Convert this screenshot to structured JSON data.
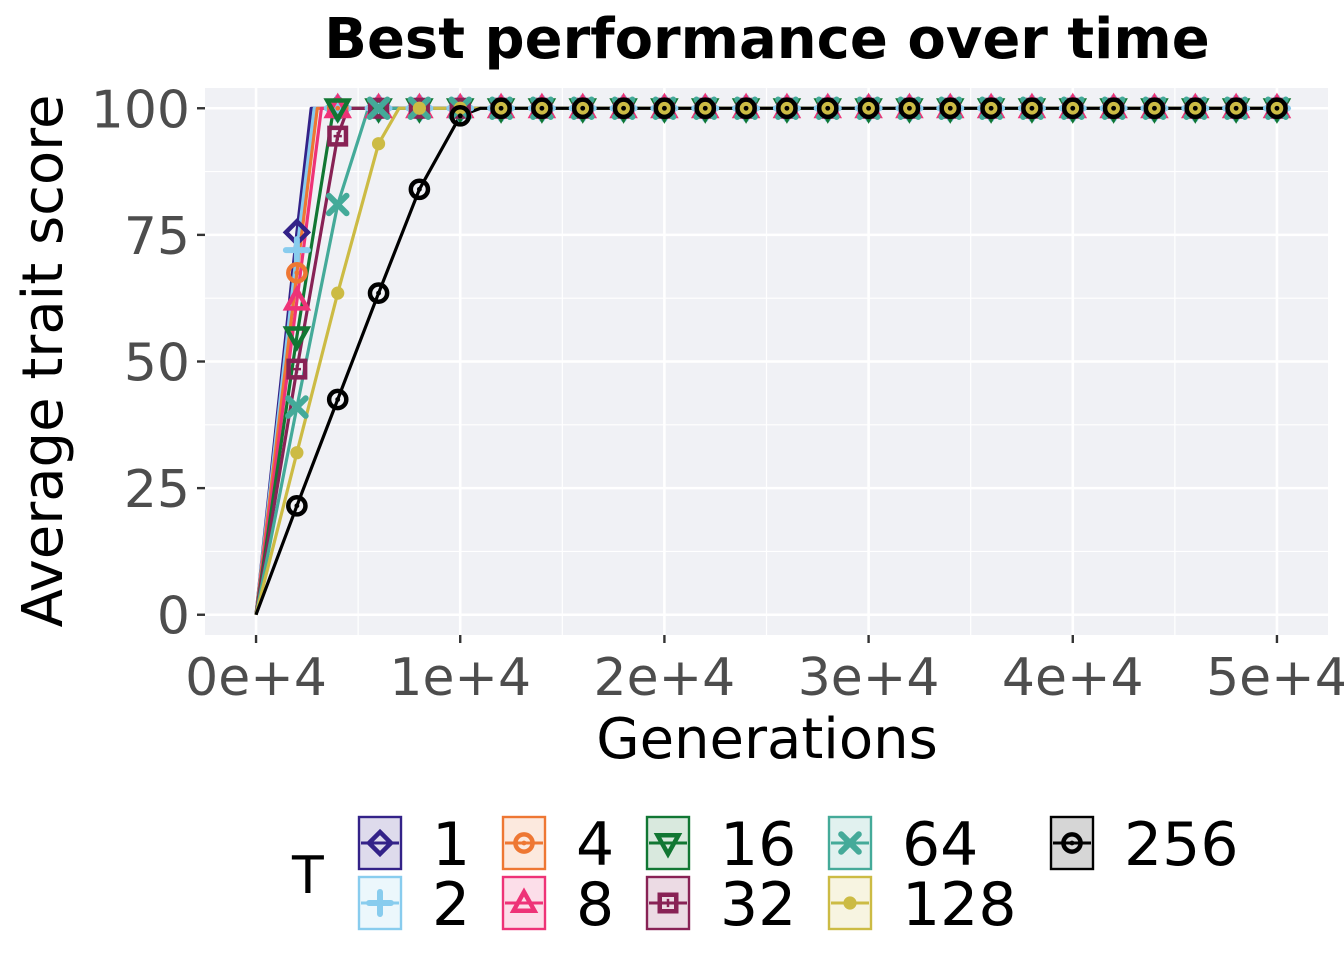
{
  "chart_data": {
    "type": "line",
    "title": "Best performance over time",
    "xlabel": "Generations",
    "ylabel": "Average trait score",
    "xlim": [
      -2500,
      52500
    ],
    "ylim": [
      -4,
      104
    ],
    "xticks": [
      0,
      10000,
      20000,
      30000,
      40000,
      50000
    ],
    "xtick_labels": [
      "0e+4",
      "1e+4",
      "2e+4",
      "3e+4",
      "4e+4",
      "5e+4"
    ],
    "yticks": [
      0,
      25,
      50,
      75,
      100
    ],
    "ytick_labels": [
      "0",
      "25",
      "50",
      "75",
      "100"
    ],
    "grid": true,
    "legend": {
      "title": "T",
      "placement": "bottom"
    },
    "marker_x": [
      2000,
      4000,
      6000,
      8000,
      10000,
      12000,
      14000,
      16000,
      18000,
      20000,
      22000,
      24000,
      26000,
      28000,
      30000,
      32000,
      34000,
      36000,
      38000,
      40000,
      42000,
      44000,
      46000,
      48000,
      50000
    ],
    "series": [
      {
        "name": "1",
        "color": "#332288",
        "marker": "diamond",
        "saturate_at": 2700,
        "points": [
          [
            0,
            0
          ],
          [
            2000,
            75.5
          ],
          [
            2700,
            100
          ],
          [
            50000,
            100
          ]
        ]
      },
      {
        "name": "2",
        "color": "#88ccee",
        "marker": "plus",
        "saturate_at": 2850,
        "points": [
          [
            0,
            0
          ],
          [
            2000,
            72
          ],
          [
            2850,
            100
          ],
          [
            50000,
            100
          ]
        ]
      },
      {
        "name": "4",
        "color": "#ee7733",
        "marker": "circle-dot",
        "saturate_at": 3000,
        "points": [
          [
            0,
            0
          ],
          [
            2000,
            67.5
          ],
          [
            3000,
            100
          ],
          [
            50000,
            100
          ]
        ]
      },
      {
        "name": "8",
        "color": "#ee3377",
        "marker": "triangle-up",
        "saturate_at": 3200,
        "points": [
          [
            0,
            0
          ],
          [
            2000,
            62
          ],
          [
            3200,
            100
          ],
          [
            50000,
            100
          ]
        ]
      },
      {
        "name": "16",
        "color": "#117733",
        "marker": "triangle-down",
        "saturate_at": 3800,
        "points": [
          [
            0,
            0
          ],
          [
            2000,
            55
          ],
          [
            3800,
            100
          ],
          [
            50000,
            100
          ]
        ]
      },
      {
        "name": "32",
        "color": "#882255",
        "marker": "square-cross",
        "saturate_at": 4500,
        "points": [
          [
            0,
            0
          ],
          [
            2000,
            48.5
          ],
          [
            4000,
            94.5
          ],
          [
            4500,
            100
          ],
          [
            50000,
            100
          ]
        ]
      },
      {
        "name": "64",
        "color": "#44aa99",
        "marker": "x",
        "saturate_at": 5500,
        "points": [
          [
            0,
            0
          ],
          [
            2000,
            41
          ],
          [
            4000,
            81
          ],
          [
            5500,
            100
          ],
          [
            50000,
            100
          ]
        ]
      },
      {
        "name": "128",
        "color": "#ccbb44",
        "marker": "dot",
        "saturate_at": 7000,
        "points": [
          [
            0,
            0
          ],
          [
            2000,
            32
          ],
          [
            4000,
            63.5
          ],
          [
            6000,
            93
          ],
          [
            7000,
            100
          ],
          [
            50000,
            100
          ]
        ]
      },
      {
        "name": "256",
        "color": "#000000",
        "marker": "circle-dot",
        "saturate_at": 11000,
        "points": [
          [
            0,
            0
          ],
          [
            2000,
            21.5
          ],
          [
            4000,
            42.5
          ],
          [
            6000,
            63.5
          ],
          [
            8000,
            84
          ],
          [
            10000,
            98.5
          ],
          [
            11000,
            100
          ],
          [
            50000,
            100
          ]
        ]
      }
    ]
  }
}
